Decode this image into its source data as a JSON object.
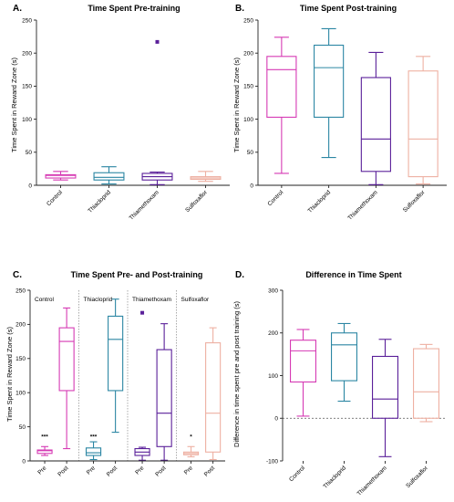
{
  "colors": {
    "Control": "#d63ab4",
    "Thiacloprid": "#2b86a3",
    "Thiamethoxam": "#5a1f99",
    "Sulfoxaflor": "#eeb0a2",
    "axis": "#222222"
  },
  "chart_data": [
    {
      "id": "A",
      "type": "boxplot",
      "panel_label": "A.",
      "title": "Time Spent Pre-training",
      "xlabel": "",
      "ylabel": "Time Spent in Reward Zone (s)",
      "ylim": [
        0,
        250
      ],
      "yticks": [
        0,
        50,
        100,
        150,
        200,
        250
      ],
      "categories": [
        "Control",
        "Thiacloprid",
        "Thiamethoxam",
        "Sulfoxaflor"
      ],
      "boxes": [
        {
          "name": "Control",
          "min": 8,
          "q1": 11,
          "median": 15,
          "q3": 16,
          "max": 21
        },
        {
          "name": "Thiacloprid",
          "min": 2,
          "q1": 8,
          "median": 12,
          "q3": 19,
          "max": 28
        },
        {
          "name": "Thiamethoxam",
          "min": 1,
          "q1": 8,
          "median": 13,
          "q3": 18,
          "max": 20
        },
        {
          "name": "Sulfoxaflor",
          "min": 6,
          "q1": 9,
          "median": 11,
          "q3": 13,
          "max": 21
        }
      ],
      "outliers": [
        {
          "category": "Thiamethoxam",
          "value": 217
        }
      ]
    },
    {
      "id": "B",
      "type": "boxplot",
      "panel_label": "B.",
      "title": "Time Spent Post-training",
      "xlabel": "",
      "ylabel": "Time Spent in Reward Zone (s)",
      "ylim": [
        0,
        250
      ],
      "yticks": [
        0,
        50,
        100,
        150,
        200,
        250
      ],
      "categories": [
        "Control",
        "Thiacloprid",
        "Thiamethoxam",
        "Sulfoxaflor"
      ],
      "boxes": [
        {
          "name": "Control",
          "min": 18,
          "q1": 103,
          "median": 175,
          "q3": 195,
          "max": 224
        },
        {
          "name": "Thiacloprid",
          "min": 42,
          "q1": 103,
          "median": 178,
          "q3": 212,
          "max": 237
        },
        {
          "name": "Thiamethoxam",
          "min": 1,
          "q1": 21,
          "median": 70,
          "q3": 163,
          "max": 201
        },
        {
          "name": "Sulfoxaflor",
          "min": 2,
          "q1": 13,
          "median": 70,
          "q3": 173,
          "max": 195
        }
      ],
      "outliers": []
    },
    {
      "id": "C",
      "type": "boxplot",
      "panel_label": "C.",
      "title": "Time Spent Pre- and Post-training",
      "xlabel": "",
      "ylabel": "Time Spent in Reward Zone (s)",
      "ylim": [
        0,
        250
      ],
      "yticks": [
        0,
        50,
        100,
        150,
        200,
        250
      ],
      "groups": [
        "Control",
        "Thiacloprid",
        "Thiamethoxam",
        "Sulfoxaflor"
      ],
      "subcategories": [
        "Pre",
        "Post"
      ],
      "boxes": [
        {
          "group": "Control",
          "phase": "Pre",
          "min": 8,
          "q1": 11,
          "median": 15,
          "q3": 16,
          "max": 21
        },
        {
          "group": "Control",
          "phase": "Post",
          "min": 18,
          "q1": 103,
          "median": 175,
          "q3": 195,
          "max": 224
        },
        {
          "group": "Thiacloprid",
          "phase": "Pre",
          "min": 2,
          "q1": 8,
          "median": 12,
          "q3": 19,
          "max": 28
        },
        {
          "group": "Thiacloprid",
          "phase": "Post",
          "min": 42,
          "q1": 103,
          "median": 178,
          "q3": 212,
          "max": 237
        },
        {
          "group": "Thiamethoxam",
          "phase": "Pre",
          "min": 1,
          "q1": 8,
          "median": 13,
          "q3": 18,
          "max": 20
        },
        {
          "group": "Thiamethoxam",
          "phase": "Post",
          "min": 1,
          "q1": 21,
          "median": 70,
          "q3": 163,
          "max": 201
        },
        {
          "group": "Sulfoxaflor",
          "phase": "Pre",
          "min": 6,
          "q1": 9,
          "median": 11,
          "q3": 13,
          "max": 21
        },
        {
          "group": "Sulfoxaflor",
          "phase": "Post",
          "min": 2,
          "q1": 13,
          "median": 70,
          "q3": 173,
          "max": 195
        }
      ],
      "outliers": [
        {
          "group": "Thiamethoxam",
          "phase": "Pre",
          "value": 217
        }
      ],
      "annotations": [
        {
          "group": "Control",
          "text": "***",
          "value": 33
        },
        {
          "group": "Thiacloprid",
          "text": "***",
          "value": 33
        },
        {
          "group": "Sulfoxaflor",
          "text": "*",
          "value": 33
        }
      ]
    },
    {
      "id": "D",
      "type": "boxplot",
      "panel_label": "D.",
      "title": "Difference in Time Spent",
      "xlabel": "",
      "ylabel": "Difference in time spent pre and post training (s)",
      "ylim": [
        -100,
        300
      ],
      "yticks": [
        -100,
        0,
        100,
        200,
        300
      ],
      "reference_line": 0,
      "categories": [
        "Control",
        "Thiacloprid",
        "Thiamethoxam",
        "Sulfoxaflor"
      ],
      "boxes": [
        {
          "name": "Control",
          "min": 5,
          "q1": 85,
          "median": 158,
          "q3": 183,
          "max": 208
        },
        {
          "name": "Thiacloprid",
          "min": 40,
          "q1": 88,
          "median": 172,
          "q3": 200,
          "max": 222
        },
        {
          "name": "Thiamethoxam",
          "min": -90,
          "q1": 0,
          "median": 45,
          "q3": 145,
          "max": 185
        },
        {
          "name": "Sulfoxaflor",
          "min": -8,
          "q1": 0,
          "median": 62,
          "q3": 163,
          "max": 173
        }
      ],
      "outliers": []
    }
  ]
}
